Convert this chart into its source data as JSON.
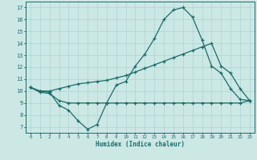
{
  "xlabel": "Humidex (Indice chaleur)",
  "background_color": "#cce8e4",
  "grid_color": "#aad4d0",
  "line_color": "#1a6b6b",
  "xlim": [
    -0.5,
    23.5
  ],
  "ylim": [
    6.5,
    17.5
  ],
  "xticks": [
    0,
    1,
    2,
    3,
    4,
    5,
    6,
    7,
    8,
    9,
    10,
    11,
    12,
    13,
    14,
    15,
    16,
    17,
    18,
    19,
    20,
    21,
    22,
    23
  ],
  "yticks": [
    7,
    8,
    9,
    10,
    11,
    12,
    13,
    14,
    15,
    16,
    17
  ],
  "line1_x": [
    0,
    1,
    2,
    3,
    4,
    5,
    6,
    7,
    8,
    9,
    10,
    11,
    12,
    13,
    14,
    15,
    16,
    17,
    18,
    19,
    20,
    21,
    22,
    23
  ],
  "line1_y": [
    10.3,
    10.0,
    9.9,
    8.8,
    8.4,
    7.5,
    6.8,
    7.2,
    9.0,
    10.5,
    10.8,
    12.1,
    13.1,
    14.4,
    16.0,
    16.8,
    17.0,
    16.2,
    14.3,
    12.1,
    11.5,
    10.2,
    9.3,
    9.2
  ],
  "line2_x": [
    0,
    1,
    2,
    3,
    4,
    5,
    6,
    7,
    8,
    9,
    10,
    11,
    12,
    13,
    14,
    15,
    16,
    17,
    18,
    19,
    20,
    21,
    22,
    23
  ],
  "line2_y": [
    10.3,
    10.0,
    10.0,
    10.2,
    10.4,
    10.6,
    10.7,
    10.8,
    10.9,
    11.1,
    11.3,
    11.6,
    11.9,
    12.2,
    12.5,
    12.8,
    13.1,
    13.4,
    13.7,
    14.0,
    12.1,
    11.5,
    10.2,
    9.2
  ],
  "line3_x": [
    0,
    1,
    2,
    3,
    4,
    5,
    6,
    7,
    8,
    9,
    10,
    11,
    12,
    13,
    14,
    15,
    16,
    17,
    18,
    19,
    20,
    21,
    22,
    23
  ],
  "line3_y": [
    10.3,
    9.9,
    9.8,
    9.2,
    9.0,
    9.0,
    9.0,
    9.0,
    9.0,
    9.0,
    9.0,
    9.0,
    9.0,
    9.0,
    9.0,
    9.0,
    9.0,
    9.0,
    9.0,
    9.0,
    9.0,
    9.0,
    9.0,
    9.2
  ]
}
